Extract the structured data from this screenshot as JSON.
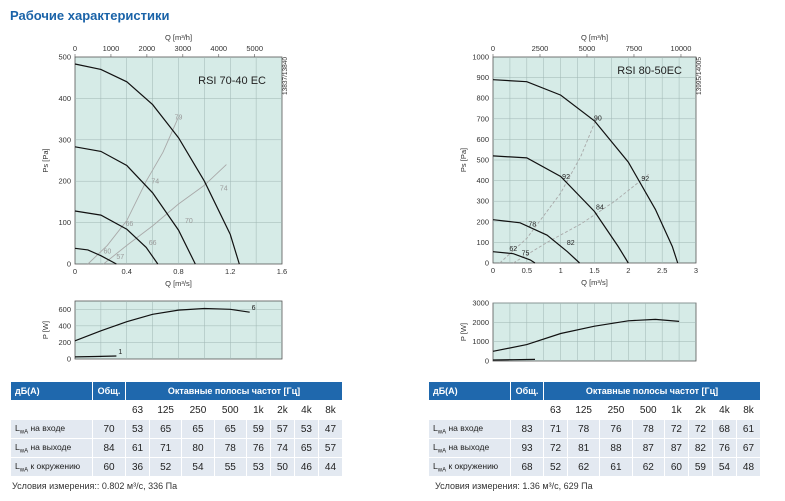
{
  "title": "Рабочие характеристики",
  "charts": [
    {
      "model": "RSI 70-40 EC",
      "side_label": "13837/13840",
      "q_top_label": "Q [m³/h]",
      "q_top_ticks": [
        "0",
        "1000",
        "2000",
        "3000",
        "4000",
        "5000"
      ],
      "ps_label": "Ps [Pa]",
      "ps_ticks": [
        "0",
        "100",
        "200",
        "300",
        "400",
        "500"
      ],
      "q_bottom_label": "Q [m³/s]",
      "q_bottom_ticks": [
        "0",
        "0.4",
        "0.8",
        "1.2",
        "1.6"
      ],
      "p_label": "P [W]",
      "p_ticks": [
        "0",
        "200",
        "400",
        "600"
      ],
      "curve_tags": [
        "6",
        "1"
      ],
      "efficiency_labels": [
        "79",
        "74",
        "74",
        "70",
        "66",
        "66",
        "60",
        "57"
      ],
      "table": {
        "header": [
          "дБ(А)",
          "Общ.",
          "Октавные полосы частот [Гц]"
        ],
        "bands": [
          "63",
          "125",
          "250",
          "500",
          "1k",
          "2k",
          "4k",
          "8k"
        ],
        "rows": [
          {
            "label": "на входе",
            "total": "70",
            "values": [
              "53",
              "65",
              "65",
              "65",
              "59",
              "57",
              "53",
              "47"
            ]
          },
          {
            "label": "на выходе",
            "total": "84",
            "values": [
              "61",
              "71",
              "80",
              "78",
              "76",
              "74",
              "65",
              "57"
            ]
          },
          {
            "label": "к окружению",
            "total": "60",
            "values": [
              "36",
              "52",
              "54",
              "55",
              "53",
              "50",
              "46",
              "44"
            ]
          }
        ]
      },
      "conditions": "Условия измерения:: 0.802 м³/с, 336 Па"
    },
    {
      "model": "RSI 80-50EC",
      "side_label": "13995/14005",
      "q_top_label": "Q [m³/h]",
      "q_top_ticks": [
        "0",
        "2500",
        "5000",
        "7500",
        "10000"
      ],
      "ps_label": "Ps [Pa]",
      "ps_ticks": [
        "0",
        "100",
        "200",
        "300",
        "400",
        "500",
        "600",
        "700",
        "800",
        "900",
        "1000"
      ],
      "q_bottom_label": "Q [m³/s]",
      "q_bottom_ticks": [
        "0",
        "0.5",
        "1",
        "1.5",
        "2",
        "2.5",
        "3"
      ],
      "p_label": "P [W]",
      "p_ticks": [
        "0",
        "1000",
        "2000",
        "3000"
      ],
      "efficiency_labels": [
        "90",
        "92",
        "92",
        "84",
        "78",
        "82",
        "62",
        "75"
      ],
      "table": {
        "header": [
          "дБ(А)",
          "Общ.",
          "Октавные полосы частот [Гц]"
        ],
        "bands": [
          "63",
          "125",
          "250",
          "500",
          "1k",
          "2k",
          "4k",
          "8k"
        ],
        "rows": [
          {
            "label": "на входе",
            "total": "83",
            "values": [
              "71",
              "78",
              "76",
              "78",
              "72",
              "72",
              "68",
              "61"
            ]
          },
          {
            "label": "на выходе",
            "total": "93",
            "values": [
              "72",
              "81",
              "88",
              "87",
              "87",
              "82",
              "76",
              "67"
            ]
          },
          {
            "label": "к окружению",
            "total": "68",
            "values": [
              "52",
              "62",
              "61",
              "62",
              "60",
              "59",
              "54",
              "48"
            ]
          }
        ]
      },
      "conditions": "Условия измерения: 1.36 м³/с, 629 Па"
    }
  ],
  "lwa_prefix": "L",
  "lwa_sub": "wA",
  "colors": {
    "plot_bg": "#d6ebe7",
    "grid": "#9fb6b3",
    "curve": "#111111",
    "eff_line": "#a9a9a9",
    "header": "#1f68ad",
    "title": "#1a63a8"
  },
  "chart_data": [
    {
      "type": "line",
      "title": "RSI 70-40 EC",
      "xlabel": "Q [m³/s]",
      "ylabel": "Ps [Pa]",
      "xlim": [
        0,
        1.6
      ],
      "ylim": [
        0,
        500
      ],
      "x2label": "Q [m³/h]",
      "x2lim": [
        0,
        5760
      ],
      "grid": true,
      "series": [
        {
          "points": [
            [
              0,
              483
            ],
            [
              0.2,
              470
            ],
            [
              0.4,
              440
            ],
            [
              0.6,
              385
            ],
            [
              0.8,
              305
            ],
            [
              1.0,
              200
            ],
            [
              1.2,
              72
            ],
            [
              1.27,
              0
            ]
          ]
        },
        {
          "points": [
            [
              0,
              283
            ],
            [
              0.2,
              272
            ],
            [
              0.4,
              238
            ],
            [
              0.6,
              172
            ],
            [
              0.8,
              82
            ],
            [
              0.93,
              0
            ]
          ]
        },
        {
          "points": [
            [
              0,
              128
            ],
            [
              0.2,
              118
            ],
            [
              0.4,
              84
            ],
            [
              0.55,
              40
            ],
            [
              0.64,
              0
            ]
          ]
        },
        {
          "points": [
            [
              0,
              38
            ],
            [
              0.1,
              34
            ],
            [
              0.2,
              20
            ],
            [
              0.32,
              0
            ]
          ]
        }
      ],
      "efficiency_lines": [
        {
          "points": [
            [
              0.1,
              0
            ],
            [
              0.25,
              45
            ],
            [
              0.4,
              105
            ],
            [
              0.55,
              200
            ],
            [
              0.68,
              270
            ],
            [
              0.8,
              355
            ]
          ]
        },
        {
          "points": [
            [
              0.22,
              0
            ],
            [
              0.4,
              45
            ],
            [
              0.6,
              92
            ],
            [
              0.8,
              145
            ],
            [
              1.0,
              190
            ],
            [
              1.17,
              240
            ]
          ]
        }
      ],
      "efficiency_labels": [
        {
          "x": 0.8,
          "y": 355,
          "text": "79"
        },
        {
          "x": 0.62,
          "y": 200,
          "text": "74"
        },
        {
          "x": 1.15,
          "y": 184,
          "text": "74"
        },
        {
          "x": 0.88,
          "y": 105,
          "text": "70"
        },
        {
          "x": 0.42,
          "y": 98,
          "text": "66"
        },
        {
          "x": 0.6,
          "y": 52,
          "text": "66"
        },
        {
          "x": 0.25,
          "y": 32,
          "text": "60"
        },
        {
          "x": 0.35,
          "y": 18,
          "text": "57"
        }
      ]
    },
    {
      "type": "line",
      "title": "RSI 70-40 EC",
      "xlabel": "",
      "ylabel": "P [W]",
      "xlim": [
        0,
        1.6
      ],
      "ylim": [
        0,
        700
      ],
      "series": [
        {
          "name": "6",
          "points": [
            [
              0,
              220
            ],
            [
              0.2,
              340
            ],
            [
              0.4,
              450
            ],
            [
              0.6,
              540
            ],
            [
              0.8,
              590
            ],
            [
              1.0,
              610
            ],
            [
              1.2,
              600
            ],
            [
              1.35,
              565
            ]
          ]
        },
        {
          "name": "1",
          "points": [
            [
              0,
              25
            ],
            [
              0.16,
              30
            ],
            [
              0.32,
              36
            ]
          ]
        }
      ]
    },
    {
      "type": "line",
      "title": "RSI 80-50EC",
      "xlabel": "Q [m³/s]",
      "ylabel": "Ps [Pa]",
      "xlim": [
        0,
        3
      ],
      "ylim": [
        0,
        1000
      ],
      "x2label": "Q [m³/h]",
      "x2lim": [
        0,
        10800
      ],
      "grid": true,
      "series": [
        {
          "points": [
            [
              0,
              890
            ],
            [
              0.5,
              880
            ],
            [
              1.0,
              815
            ],
            [
              1.5,
              690
            ],
            [
              2.0,
              490
            ],
            [
              2.4,
              260
            ],
            [
              2.65,
              80
            ],
            [
              2.73,
              0
            ]
          ]
        },
        {
          "points": [
            [
              0,
              520
            ],
            [
              0.5,
              510
            ],
            [
              1.0,
              420
            ],
            [
              1.5,
              250
            ],
            [
              1.85,
              80
            ],
            [
              2.0,
              0
            ]
          ]
        },
        {
          "points": [
            [
              0,
              210
            ],
            [
              0.4,
              195
            ],
            [
              0.8,
              135
            ],
            [
              1.1,
              55
            ],
            [
              1.28,
              0
            ]
          ]
        },
        {
          "points": [
            [
              0,
              55
            ],
            [
              0.3,
              45
            ],
            [
              0.55,
              15
            ],
            [
              0.62,
              0
            ]
          ]
        }
      ],
      "efficiency_lines": [
        {
          "points": [
            [
              0.1,
              0
            ],
            [
              0.5,
              120
            ],
            [
              1.0,
              340
            ],
            [
              1.3,
              520
            ],
            [
              1.55,
              720
            ]
          ]
        },
        {
          "points": [
            [
              0.3,
              0
            ],
            [
              0.8,
              100
            ],
            [
              1.3,
              190
            ],
            [
              1.8,
              300
            ],
            [
              2.3,
              430
            ]
          ]
        }
      ],
      "efficiency_labels": [
        {
          "x": 1.55,
          "y": 705,
          "text": "90"
        },
        {
          "x": 1.08,
          "y": 420,
          "text": "92"
        },
        {
          "x": 2.25,
          "y": 410,
          "text": "92"
        },
        {
          "x": 1.58,
          "y": 272,
          "text": "84"
        },
        {
          "x": 0.58,
          "y": 190,
          "text": "78"
        },
        {
          "x": 1.15,
          "y": 100,
          "text": "82"
        },
        {
          "x": 0.3,
          "y": 70,
          "text": "62"
        },
        {
          "x": 0.48,
          "y": 48,
          "text": "75"
        }
      ]
    },
    {
      "type": "line",
      "title": "RSI 80-50EC",
      "xlabel": "",
      "ylabel": "P [W]",
      "xlim": [
        0,
        3
      ],
      "ylim": [
        0,
        3000
      ],
      "series": [
        {
          "points": [
            [
              0,
              500
            ],
            [
              0.5,
              850
            ],
            [
              1.0,
              1420
            ],
            [
              1.5,
              1800
            ],
            [
              2.0,
              2080
            ],
            [
              2.4,
              2150
            ],
            [
              2.75,
              2050
            ]
          ]
        },
        {
          "points": [
            [
              0,
              50
            ],
            [
              0.3,
              65
            ],
            [
              0.62,
              85
            ]
          ]
        }
      ]
    }
  ]
}
